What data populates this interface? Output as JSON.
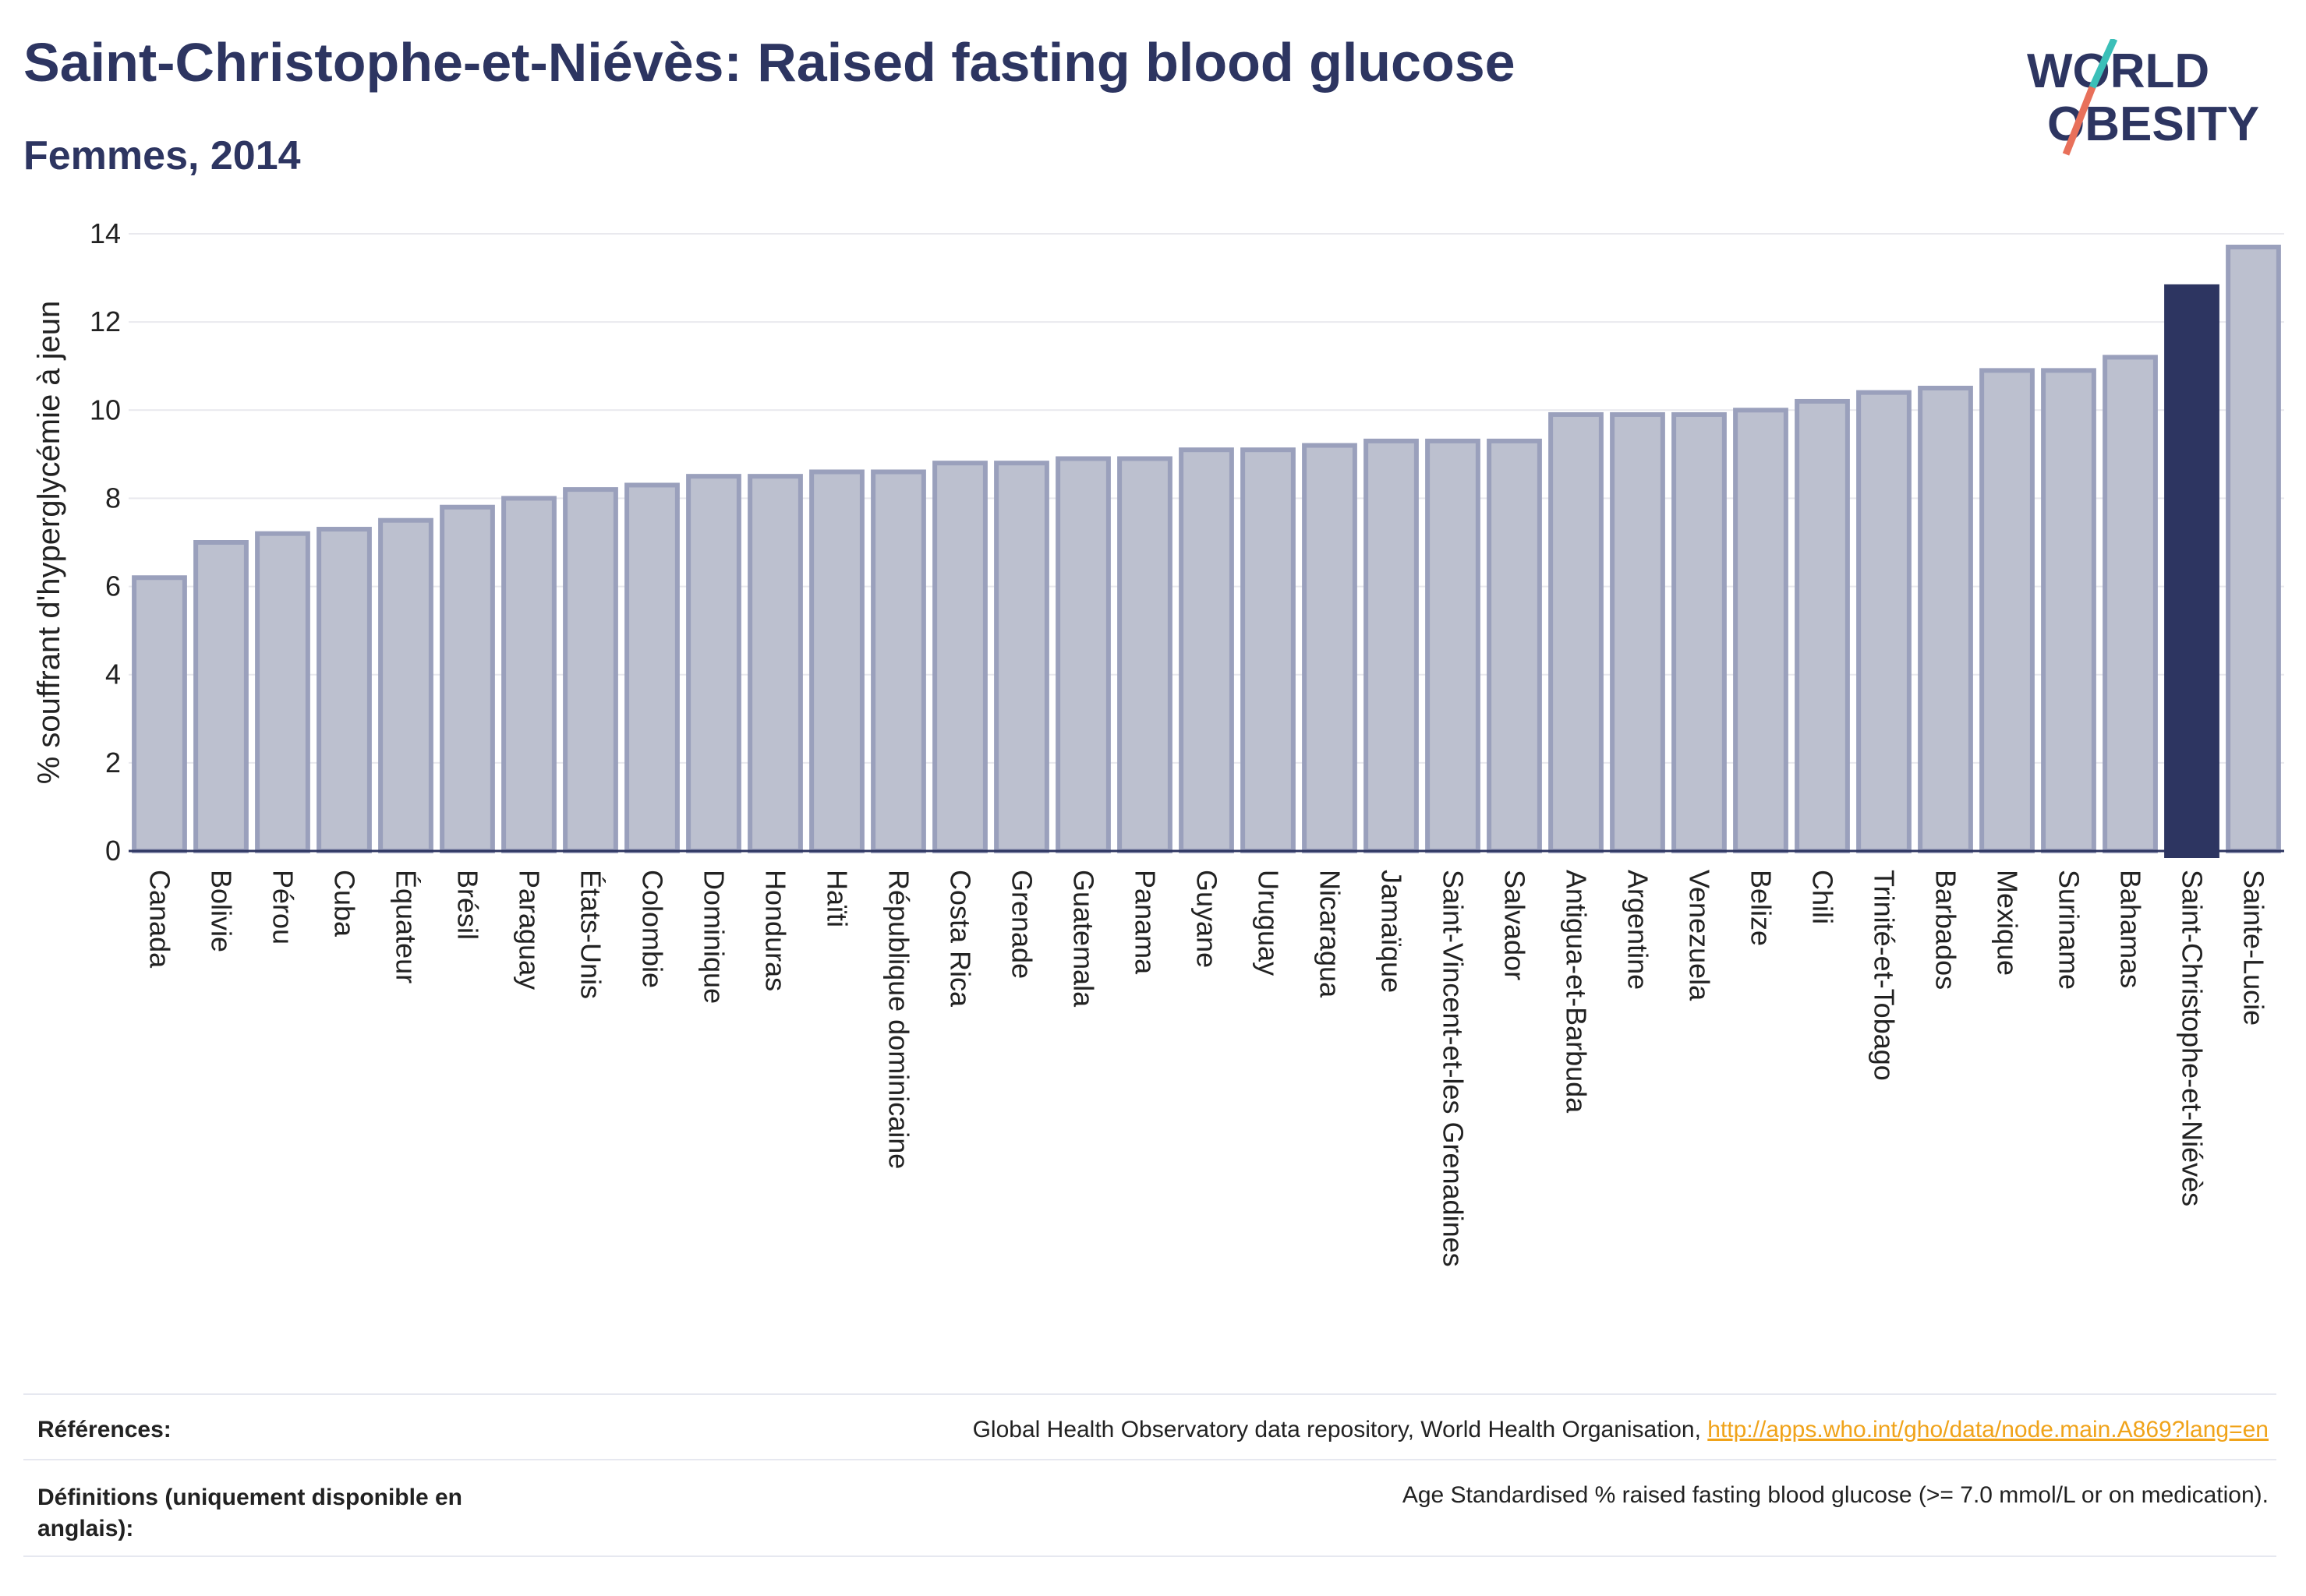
{
  "header": {
    "title": "Saint-Christophe-et-Niévès: Raised fasting blood glucose",
    "subtitle": "Femmes, 2014"
  },
  "logo": {
    "line1": "WORLD",
    "line2": "OBESITY",
    "accent_teal": "#3bbfb8",
    "accent_coral": "#e8705a"
  },
  "colors": {
    "bar": "#bcc0cf",
    "bar_border": "#9aa0bc",
    "highlight": "#2d3561",
    "grid": "#e9e9ee",
    "axis": "#2d3561"
  },
  "chart_data": {
    "type": "bar",
    "ylabel": "% souffrant d'hyperglycémie à jeun",
    "ylim": [
      0,
      14
    ],
    "yticks": [
      0,
      2,
      4,
      6,
      8,
      10,
      12,
      14
    ],
    "highlight": "Saint-Christophe-et-Niévès",
    "categories": [
      "Canada",
      "Bolivie",
      "Pérou",
      "Cuba",
      "Équateur",
      "Brésil",
      "Paraguay",
      "États-Unis",
      "Colombie",
      "Dominique",
      "Honduras",
      "Haïti",
      "République dominicaine",
      "Costa Rica",
      "Grenade",
      "Guatemala",
      "Panama",
      "Guyane",
      "Uruguay",
      "Nicaragua",
      "Jamaïque",
      "Saint-Vincent-et-les Grenadines",
      "Salvador",
      "Antigua-et-Barbuda",
      "Argentine",
      "Venezuela",
      "Belize",
      "Chili",
      "Trinité-et-Tobago",
      "Barbados",
      "Mexique",
      "Suriname",
      "Bahamas",
      "Saint-Christophe-et-Niévès",
      "Sainte-Lucie"
    ],
    "values": [
      6.2,
      7.0,
      7.2,
      7.3,
      7.5,
      7.8,
      8.0,
      8.2,
      8.3,
      8.5,
      8.5,
      8.6,
      8.6,
      8.8,
      8.8,
      8.9,
      8.9,
      9.1,
      9.1,
      9.2,
      9.3,
      9.3,
      9.3,
      9.9,
      9.9,
      9.9,
      10.0,
      10.2,
      10.4,
      10.5,
      10.9,
      10.9,
      11.2,
      12.8,
      13.7
    ],
    "grid": true
  },
  "footer": {
    "references_label": "Références:",
    "references_text": "Global Health Observatory data repository, World Health Organisation, ",
    "references_link": "http://apps.who.int/gho/data/node.main.A869?lang=en",
    "definitions_label_1": "Définitions (uniquement disponible en",
    "definitions_label_2": "anglais):",
    "definitions_text": "Age Standardised % raised fasting blood glucose (>= 7.0 mmol/L or on medication)."
  }
}
